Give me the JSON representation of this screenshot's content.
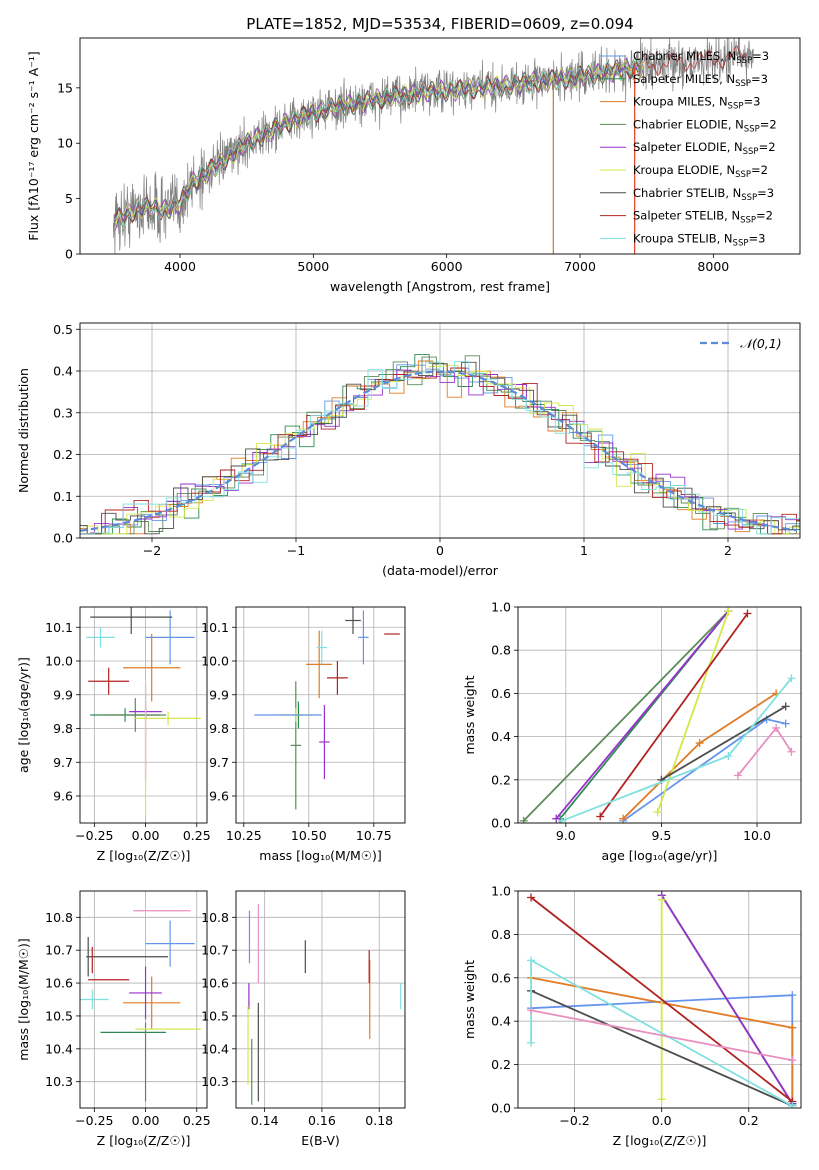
{
  "figure": {
    "title": "PLATE=1852, MJD=53534, FIBERID=0609, z=0.094"
  },
  "models": [
    {
      "name": "Chabrier MILES, N_SSP=3",
      "label_main": "Chabrier MILES, N",
      "label_sub": "SSP",
      "label_end": "=3",
      "color": "#6495ED"
    },
    {
      "name": "Salpeter MILES, N_SSP=3",
      "label_main": "Salpeter MILES, N",
      "label_sub": "SSP",
      "label_end": "=3",
      "color": "#2e8b57"
    },
    {
      "name": "Kroupa MILES, N_SSP=3",
      "label_main": "Kroupa MILES, N",
      "label_sub": "SSP",
      "label_end": "=3",
      "color": "#e07b26"
    },
    {
      "name": "Chabrier ELODIE, N_SSP=2",
      "label_main": "Chabrier ELODIE, N",
      "label_sub": "SSP",
      "label_end": "=2",
      "color": "#5f8a5a"
    },
    {
      "name": "Salpeter ELODIE, N_SSP=2",
      "label_main": "Salpeter ELODIE, N",
      "label_sub": "SSP",
      "label_end": "=2",
      "color": "#9932CC"
    },
    {
      "name": "Kroupa ELODIE, N_SSP=2",
      "label_main": "Kroupa ELODIE, N",
      "label_sub": "SSP",
      "label_end": "=2",
      "color": "#d4e84a"
    },
    {
      "name": "Chabrier STELIB, N_SSP=3",
      "label_main": "Chabrier STELIB, N",
      "label_sub": "SSP",
      "label_end": "=3",
      "color": "#4d4d4d"
    },
    {
      "name": "Salpeter STELIB, N_SSP=2",
      "label_main": "Salpeter STELIB, N",
      "label_sub": "SSP",
      "label_end": "=2",
      "color": "#b22222"
    },
    {
      "name": "Kroupa STELIB, N_SSP=3",
      "label_main": "Kroupa STELIB, N",
      "label_sub": "SSP",
      "label_end": "=3",
      "color": "#7fe0e0"
    }
  ],
  "chart_data": [
    {
      "id": "spectrum",
      "type": "line",
      "xlabel": "wavelength [Angstrom, rest frame]",
      "ylabel": "Flux [fλ10⁻¹⁷ erg cm⁻² s⁻¹ A⁻¹]",
      "xlim": [
        3250,
        8650
      ],
      "ylim": [
        0,
        19.5
      ],
      "xticks": [
        4000,
        5000,
        6000,
        7000,
        8000
      ],
      "yticks": [
        0,
        5,
        10,
        15
      ],
      "data_start": 3500,
      "data_end": 8300,
      "continuum": [
        [
          3500,
          3.0
        ],
        [
          3600,
          3.5
        ],
        [
          3700,
          4.2
        ],
        [
          3900,
          4.0
        ],
        [
          4000,
          4.6
        ],
        [
          4100,
          6.5
        ],
        [
          4300,
          8.2
        ],
        [
          4500,
          10.0
        ],
        [
          4800,
          11.8
        ],
        [
          5000,
          12.8
        ],
        [
          5200,
          13.3
        ],
        [
          5500,
          14.0
        ],
        [
          5800,
          14.6
        ],
        [
          6100,
          14.8
        ],
        [
          6500,
          15.3
        ],
        [
          7000,
          16.0
        ],
        [
          7500,
          17.0
        ],
        [
          8000,
          17.6
        ],
        [
          8300,
          18.0
        ]
      ],
      "data_color": "#808080",
      "model_overlap_end": 7450,
      "spikes": [
        {
          "x": 6800,
          "color": "#b8860b"
        },
        {
          "x": 7410,
          "color": "#e04020"
        }
      ]
    },
    {
      "id": "residuals",
      "type": "histogram",
      "xlabel": "(data-model)/error",
      "ylabel": "Normed distribution",
      "xlim": [
        -2.5,
        2.5
      ],
      "ylim": [
        0,
        0.515
      ],
      "xticks": [
        -2,
        -1,
        0,
        1,
        2
      ],
      "yticks": [
        0.0,
        0.1,
        0.2,
        0.3,
        0.4,
        0.5
      ],
      "bin_width": 0.1,
      "reference": {
        "label": "𝒩(0,1)",
        "mean": 0,
        "sigma": 1,
        "color": "#5b8bd9"
      }
    },
    {
      "id": "age_vs_Z",
      "type": "scatter",
      "xlabel": "Z [log₁₀(Z/Z☉)]",
      "ylabel": "age  [log₁₀(age/yr)]",
      "xlim": [
        -0.32,
        0.3
      ],
      "ylim": [
        9.52,
        10.16
      ],
      "xticks": [
        -0.25,
        0.0,
        0.25
      ],
      "yticks": [
        9.6,
        9.7,
        9.8,
        9.9,
        10.0,
        10.1
      ],
      "points": [
        {
          "model": 0,
          "x": 0.12,
          "xerr": 0.12,
          "y": 10.07,
          "yerr": 0.08
        },
        {
          "model": 1,
          "x": -0.1,
          "xerr": 0.17,
          "y": 9.84,
          "yerr": 0.02
        },
        {
          "model": 2,
          "x": 0.03,
          "xerr": 0.14,
          "y": 9.98,
          "yerr": 0.1
        },
        {
          "model": 3,
          "x": -0.05,
          "xerr": 0.15,
          "y": 9.84,
          "yerr": 0.05
        },
        {
          "model": 4,
          "x": 0.0,
          "xerr": 0.08,
          "y": 9.85,
          "yerr": 0.02
        },
        {
          "model": 5,
          "x": 0.11,
          "xerr": 0.16,
          "y": 9.83,
          "yerr": 0.02
        },
        {
          "model": 6,
          "x": -0.07,
          "xerr": 0.2,
          "y": 10.13,
          "yerr": 0.05
        },
        {
          "model": 7,
          "x": -0.18,
          "xerr": 0.1,
          "y": 9.94,
          "yerr": 0.04
        },
        {
          "model": 8,
          "x": -0.22,
          "xerr": 0.07,
          "y": 10.07,
          "yerr": 0.03
        },
        {
          "model": 4,
          "x": 0.0,
          "xerr": 0.0,
          "y": 9.79,
          "yerr": 0.14
        },
        {
          "model": 5,
          "x": 0.0,
          "xerr": 0.0,
          "y": 9.74,
          "yerr": 0.2
        }
      ]
    },
    {
      "id": "age_vs_mass",
      "type": "scatter",
      "xlabel": "mass [log₁₀(M/M☉)]",
      "ylabel": "",
      "xlim": [
        10.22,
        10.87
      ],
      "ylim": [
        9.52,
        10.16
      ],
      "xticks": [
        10.25,
        10.5,
        10.75
      ],
      "yticks": [
        9.6,
        9.7,
        9.8,
        9.9,
        10.0,
        10.1
      ],
      "points": [
        {
          "model": 0,
          "x": 10.71,
          "xerr": 0.02,
          "y": 10.07,
          "yerr": 0.08
        },
        {
          "model": 1,
          "x": 10.46,
          "xerr": 0.02,
          "y": 9.84,
          "yerr": 0.04
        },
        {
          "model": 2,
          "x": 10.54,
          "xerr": 0.05,
          "y": 9.99,
          "yerr": 0.1
        },
        {
          "model": 3,
          "x": 10.45,
          "xerr": 0.02,
          "y": 9.75,
          "yerr": 0.19
        },
        {
          "model": 4,
          "x": 10.56,
          "xerr": 0.02,
          "y": 9.76,
          "yerr": 0.11
        },
        {
          "model": 5,
          "x": 10.45,
          "xerr": 0.07,
          "y": 9.84,
          "yerr": 0.02
        },
        {
          "model": 6,
          "x": 10.67,
          "xerr": 0.03,
          "y": 10.12,
          "yerr": 0.04
        },
        {
          "model": 7,
          "x": 10.61,
          "xerr": 0.04,
          "y": 9.95,
          "yerr": 0.05
        },
        {
          "model": 8,
          "x": 10.55,
          "xerr": 0.02,
          "y": 10.04,
          "yerr": 0.05
        },
        {
          "model": 0,
          "x": 10.42,
          "xerr": 0.13,
          "y": 9.84,
          "yerr": 0.0
        },
        {
          "model": 7,
          "x": 10.82,
          "xerr": 0.03,
          "y": 10.08,
          "yerr": 0.0
        }
      ]
    },
    {
      "id": "mass_weight_vs_age",
      "type": "line",
      "xlabel": "age  [log₁₀(age/yr)]",
      "ylabel": "mass weight",
      "xlim": [
        8.75,
        10.23
      ],
      "ylim": [
        0,
        1
      ],
      "xticks": [
        9.0,
        9.5,
        10.0
      ],
      "yticks": [
        0.0,
        0.2,
        0.4,
        0.6,
        0.8,
        1.0
      ],
      "series": [
        {
          "model": 0,
          "points": [
            [
              9.3,
              0.01
            ],
            [
              10.05,
              0.48
            ],
            [
              10.15,
              0.46
            ]
          ]
        },
        {
          "model": 1,
          "points": [
            [
              8.97,
              0.02
            ],
            [
              9.85,
              0.98
            ]
          ]
        },
        {
          "model": 2,
          "points": [
            [
              9.3,
              0.02
            ],
            [
              9.7,
              0.37
            ],
            [
              10.1,
              0.6
            ]
          ]
        },
        {
          "model": 3,
          "points": [
            [
              8.78,
              0.01
            ],
            [
              9.85,
              0.98
            ]
          ]
        },
        {
          "model": 4,
          "points": [
            [
              8.95,
              0.02
            ],
            [
              9.85,
              0.98
            ]
          ]
        },
        {
          "model": 5,
          "points": [
            [
              9.48,
              0.05
            ],
            [
              9.85,
              0.98
            ]
          ]
        },
        {
          "model": 6,
          "points": [
            [
              9.5,
              0.2
            ],
            [
              10.15,
              0.54
            ]
          ]
        },
        {
          "model": 7,
          "points": [
            [
              9.18,
              0.03
            ],
            [
              9.95,
              0.97
            ]
          ]
        },
        {
          "model": 8,
          "points": [
            [
              8.98,
              0.01
            ],
            [
              9.85,
              0.31
            ],
            [
              10.18,
              0.67
            ]
          ]
        },
        {
          "model": 9,
          "points": [
            [
              9.9,
              0.22
            ],
            [
              10.1,
              0.44
            ],
            [
              10.18,
              0.33
            ]
          ]
        }
      ]
    },
    {
      "id": "mass_vs_Z",
      "type": "scatter",
      "xlabel": "Z [log₁₀(Z/Z☉)]",
      "ylabel": "mass [log₁₀(M/M☉)]",
      "xlim": [
        -0.32,
        0.3
      ],
      "ylim": [
        10.22,
        10.88
      ],
      "xticks": [
        -0.25,
        0.0,
        0.25
      ],
      "yticks": [
        10.3,
        10.4,
        10.5,
        10.6,
        10.7,
        10.8
      ],
      "points": [
        {
          "model": 0,
          "x": 0.12,
          "xerr": 0.12,
          "y": 10.72,
          "yerr": 0.07
        },
        {
          "model": 1,
          "x": -0.06,
          "xerr": 0.16,
          "y": 10.45,
          "yerr": 0.0
        },
        {
          "model": 2,
          "x": 0.03,
          "xerr": 0.14,
          "y": 10.54,
          "yerr": 0.08
        },
        {
          "model": 3,
          "x": 0.0,
          "xerr": 0.0,
          "y": 10.36,
          "yerr": 0.12
        },
        {
          "model": 4,
          "x": 0.0,
          "xerr": 0.08,
          "y": 10.57,
          "yerr": 0.08
        },
        {
          "model": 5,
          "x": 0.11,
          "xerr": 0.16,
          "y": 10.46,
          "yerr": 0.0
        },
        {
          "model": 6,
          "x": -0.09,
          "xerr": 0.2,
          "y": 10.68,
          "yerr": 0.0
        },
        {
          "model": 7,
          "x": -0.18,
          "xerr": 0.1,
          "y": 10.61,
          "yerr": 0.0
        },
        {
          "model": 8,
          "x": -0.25,
          "xerr": 0.07,
          "y": 10.55,
          "yerr": 0.0
        },
        {
          "model": 9,
          "x": 0.08,
          "xerr": 0.14,
          "y": 10.82,
          "yerr": 0.0
        },
        {
          "model": 6,
          "x": -0.28,
          "xerr": 0.0,
          "y": 10.68,
          "yerr": 0.06
        },
        {
          "model": 7,
          "x": -0.26,
          "xerr": 0.0,
          "y": 10.67,
          "yerr": 0.04
        },
        {
          "model": 8,
          "x": -0.26,
          "xerr": 0.0,
          "y": 10.55,
          "yerr": 0.03
        }
      ]
    },
    {
      "id": "mass_vs_EBV",
      "type": "scatter",
      "xlabel": "E(B-V)",
      "ylabel": "",
      "xlim": [
        0.13,
        0.189
      ],
      "ylim": [
        10.22,
        10.88
      ],
      "xticks": [
        0.14,
        0.16,
        0.18
      ],
      "yticks": [
        10.3,
        10.4,
        10.5,
        10.6,
        10.7,
        10.8
      ],
      "points": [
        {
          "model": 0,
          "x": 0.1347,
          "xerr": 0.0,
          "y": 10.74,
          "yerr": 0.08
        },
        {
          "model": 2,
          "x": 0.1767,
          "xerr": 0.0,
          "y": 10.55,
          "yerr": 0.12
        },
        {
          "model": 3,
          "x": 0.1355,
          "xerr": 0.0,
          "y": 10.33,
          "yerr": 0.1
        },
        {
          "model": 4,
          "x": 0.1345,
          "xerr": 0.0,
          "y": 10.56,
          "yerr": 0.04
        },
        {
          "model": 5,
          "x": 0.1342,
          "xerr": 0.0,
          "y": 10.41,
          "yerr": 0.12
        },
        {
          "model": 6,
          "x": 0.1542,
          "xerr": 0.0,
          "y": 10.68,
          "yerr": 0.05
        },
        {
          "model": 6,
          "x": 0.1378,
          "xerr": 0.0,
          "y": 10.39,
          "yerr": 0.15
        },
        {
          "model": 7,
          "x": 0.1765,
          "xerr": 0.0,
          "y": 10.65,
          "yerr": 0.05
        },
        {
          "model": 8,
          "x": 0.1875,
          "xerr": 0.0,
          "y": 10.56,
          "yerr": 0.04
        },
        {
          "model": 9,
          "x": 0.1378,
          "xerr": 0.0,
          "y": 10.72,
          "yerr": 0.12
        }
      ]
    },
    {
      "id": "mass_weight_vs_Z",
      "type": "line",
      "xlabel": "Z [log₁₀(Z/Z☉)]",
      "ylabel": "mass weight",
      "xlim": [
        -0.33,
        0.32
      ],
      "ylim": [
        0,
        1
      ],
      "xticks": [
        -0.2,
        0.0,
        0.2
      ],
      "yticks": [
        0.0,
        0.2,
        0.4,
        0.6,
        0.8,
        1.0
      ],
      "series": [
        {
          "model": 0,
          "points": [
            [
              -0.3,
              0.46
            ],
            [
              0.3,
              0.52
            ],
            [
              0.3,
              0.01
            ]
          ]
        },
        {
          "model": 1,
          "points": [
            [
              0.0,
              0.98
            ],
            [
              0.3,
              0.02
            ]
          ]
        },
        {
          "model": 2,
          "points": [
            [
              -0.3,
              0.6
            ],
            [
              0.3,
              0.37
            ],
            [
              0.3,
              0.01
            ]
          ]
        },
        {
          "model": 3,
          "points": [
            [
              0.0,
              0.98
            ],
            [
              0.3,
              0.02
            ]
          ]
        },
        {
          "model": 4,
          "points": [
            [
              0.0,
              0.98
            ],
            [
              0.3,
              0.02
            ]
          ]
        },
        {
          "model": 5,
          "points": [
            [
              0.0,
              0.96
            ],
            [
              0.0,
              0.04
            ]
          ]
        },
        {
          "model": 6,
          "points": [
            [
              -0.3,
              0.54
            ],
            [
              0.3,
              0.01
            ]
          ]
        },
        {
          "model": 7,
          "points": [
            [
              -0.3,
              0.97
            ],
            [
              0.3,
              0.03
            ]
          ]
        },
        {
          "model": 8,
          "points": [
            [
              -0.3,
              0.3
            ],
            [
              -0.3,
              0.68
            ],
            [
              0.3,
              0.01
            ]
          ]
        },
        {
          "model": 9,
          "points": [
            [
              -0.3,
              0.45
            ],
            [
              0.3,
              0.22
            ]
          ]
        }
      ]
    }
  ]
}
